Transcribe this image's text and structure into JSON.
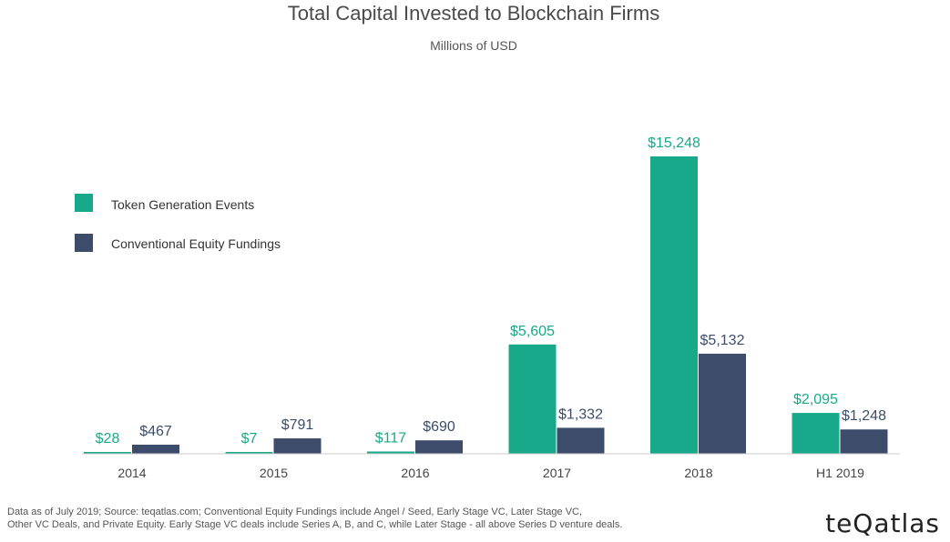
{
  "chart_data": {
    "type": "bar",
    "title": "Total Capital Invested to Blockchain Firms",
    "subtitle": "Millions of USD",
    "categories": [
      "2014",
      "2015",
      "2016",
      "2017",
      "2018",
      "H1 2019"
    ],
    "series": [
      {
        "name": "Token Generation Events",
        "color": "#17a98a",
        "values": [
          28,
          7,
          117,
          5605,
          15248,
          2095
        ],
        "labels": [
          "$28",
          "$7",
          "$117",
          "$5,605",
          "$15,248",
          "$2,095"
        ]
      },
      {
        "name": "Conventional Equity Fundings",
        "color": "#3c4c6a",
        "values": [
          467,
          791,
          690,
          1332,
          5132,
          1248
        ],
        "labels": [
          "$467",
          "$791",
          "$690",
          "$1,332",
          "$5,132",
          "$1,248"
        ]
      }
    ],
    "ylim": [
      0,
      15248
    ],
    "grid": false,
    "legend": "left"
  },
  "footnote": {
    "line1": "Data as of July 2019; Source: teqatlas.com; Conventional Equity Fundings include Angel / Seed, Early Stage VC, Later Stage VC,",
    "line2": "Other VC Deals, and Private Equity. Early Stage VC deals include Series A, B, and C, while Later Stage - all above Series D venture deals."
  },
  "brand": "teQatlas"
}
